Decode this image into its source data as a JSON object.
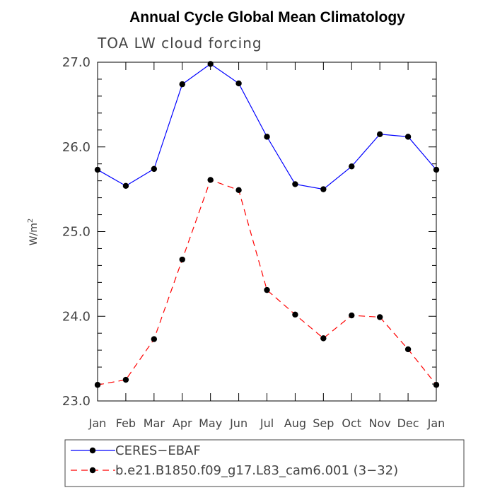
{
  "chart_data": {
    "type": "line",
    "title": "Annual Cycle Global Mean Climatology",
    "subtitle": "TOA LW cloud forcing",
    "xlabel": "",
    "ylabel": "W/m",
    "ylabel_sup": "2",
    "categories": [
      "Jan",
      "Feb",
      "Mar",
      "Apr",
      "May",
      "Jun",
      "Jul",
      "Aug",
      "Sep",
      "Oct",
      "Nov",
      "Dec",
      "Jan"
    ],
    "ylim": [
      23.0,
      27.0
    ],
    "yticks": [
      "23.0",
      "24.0",
      "25.0",
      "26.0",
      "27.0"
    ],
    "legend_position": "bottom",
    "series": [
      {
        "name": "CERES−EBAF",
        "color": "#0000ff",
        "dash": "solid",
        "values": [
          25.73,
          25.54,
          25.74,
          26.74,
          26.98,
          26.75,
          26.12,
          25.56,
          25.5,
          25.77,
          26.15,
          26.12,
          25.73
        ]
      },
      {
        "name": "b.e21.B1850.f09_g17.L83_cam6.001 (3−32)",
        "color": "#ff0000",
        "dash": "dashed",
        "values": [
          23.19,
          23.25,
          23.73,
          24.67,
          25.61,
          25.49,
          24.31,
          24.02,
          23.74,
          24.01,
          23.99,
          23.61,
          23.19
        ]
      }
    ]
  }
}
